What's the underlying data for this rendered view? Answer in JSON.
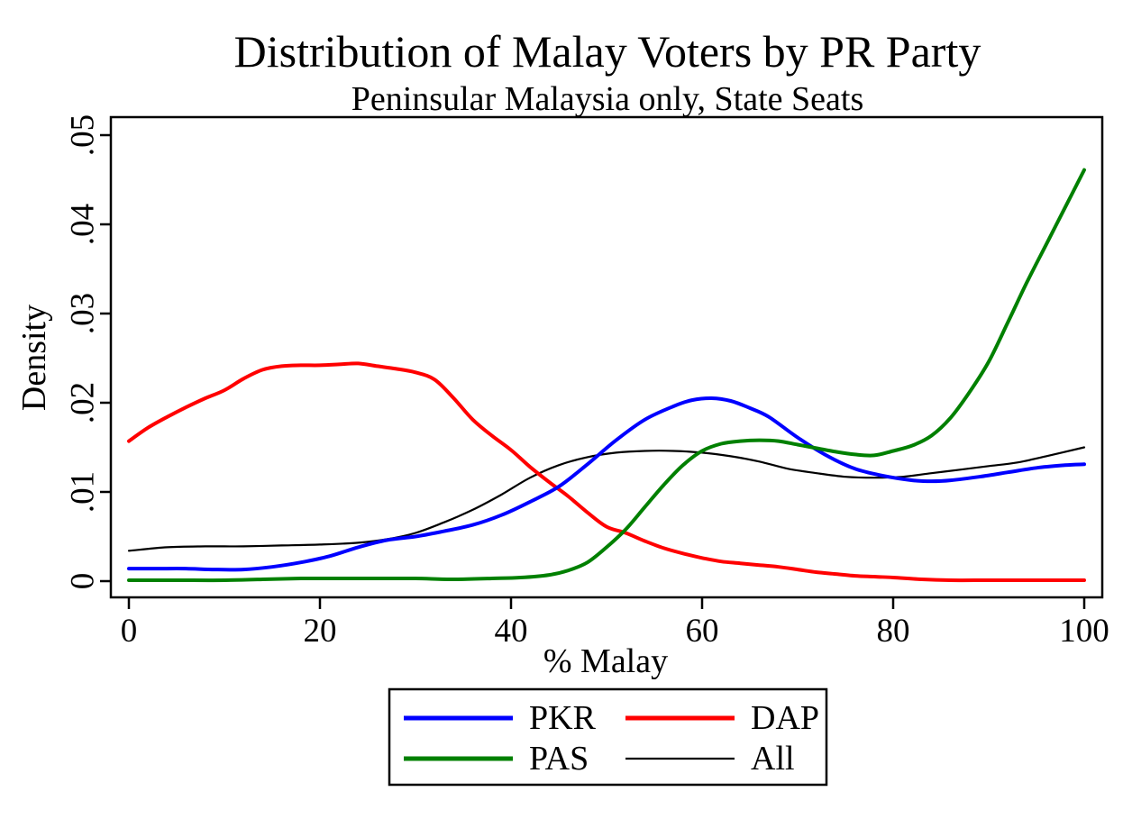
{
  "title": "Distribution of Malay Voters by PR Party",
  "subtitle": "Peninsular Malaysia only, State Seats",
  "chart_data": {
    "type": "line",
    "title": "Distribution of Malay Voters by PR Party",
    "subtitle": "Peninsular Malaysia only, State Seats",
    "xlabel": "% Malay",
    "ylabel": "Density",
    "xlim": [
      0,
      100
    ],
    "ylim": [
      0,
      0.05
    ],
    "grid": false,
    "x_ticks": [
      {
        "value": 0,
        "label": "0"
      },
      {
        "value": 20,
        "label": "20"
      },
      {
        "value": 40,
        "label": "40"
      },
      {
        "value": 60,
        "label": "60"
      },
      {
        "value": 80,
        "label": "80"
      },
      {
        "value": 100,
        "label": "100"
      }
    ],
    "y_ticks": [
      {
        "value": 0.0,
        "label": "0"
      },
      {
        "value": 0.01,
        "label": ".01"
      },
      {
        "value": 0.02,
        "label": ".02"
      },
      {
        "value": 0.03,
        "label": ".03"
      },
      {
        "value": 0.04,
        "label": ".04"
      },
      {
        "value": 0.05,
        "label": ".05"
      }
    ],
    "legend": {
      "position": "below",
      "columns": 2,
      "entries": [
        "PKR",
        "DAP",
        "PAS",
        "All"
      ]
    },
    "series": [
      {
        "name": "All",
        "color": "#000000",
        "line_width": 2.2,
        "points": [
          [
            0,
            0.0034
          ],
          [
            4,
            0.0038
          ],
          [
            8,
            0.0039
          ],
          [
            12,
            0.0039
          ],
          [
            16,
            0.004
          ],
          [
            20,
            0.0041
          ],
          [
            24,
            0.0043
          ],
          [
            27,
            0.0047
          ],
          [
            30,
            0.0054
          ],
          [
            33,
            0.0066
          ],
          [
            36,
            0.008
          ],
          [
            39,
            0.0097
          ],
          [
            42,
            0.0116
          ],
          [
            45,
            0.013
          ],
          [
            48,
            0.0139
          ],
          [
            51,
            0.0144
          ],
          [
            54,
            0.0146
          ],
          [
            57,
            0.0146
          ],
          [
            60,
            0.0144
          ],
          [
            63,
            0.014
          ],
          [
            66,
            0.0134
          ],
          [
            69,
            0.0126
          ],
          [
            72,
            0.0121
          ],
          [
            75,
            0.0117
          ],
          [
            78,
            0.0116
          ],
          [
            81,
            0.0117
          ],
          [
            84,
            0.0121
          ],
          [
            87,
            0.0125
          ],
          [
            90,
            0.0129
          ],
          [
            93,
            0.0133
          ],
          [
            96,
            0.014
          ],
          [
            100,
            0.015
          ]
        ]
      },
      {
        "name": "DAP",
        "color": "#ff0000",
        "line_width": 4,
        "points": [
          [
            0,
            0.0157
          ],
          [
            2,
            0.0172
          ],
          [
            4,
            0.0184
          ],
          [
            6,
            0.0195
          ],
          [
            8,
            0.0205
          ],
          [
            10,
            0.0214
          ],
          [
            12,
            0.0227
          ],
          [
            14,
            0.0237
          ],
          [
            16,
            0.0241
          ],
          [
            18,
            0.0242
          ],
          [
            20,
            0.0242
          ],
          [
            22,
            0.0243
          ],
          [
            24,
            0.0244
          ],
          [
            26,
            0.0241
          ],
          [
            28,
            0.0238
          ],
          [
            30,
            0.0234
          ],
          [
            32,
            0.0226
          ],
          [
            34,
            0.0205
          ],
          [
            36,
            0.0181
          ],
          [
            38,
            0.0163
          ],
          [
            40,
            0.0147
          ],
          [
            42,
            0.0128
          ],
          [
            44,
            0.0111
          ],
          [
            46,
            0.0095
          ],
          [
            48,
            0.0077
          ],
          [
            50,
            0.0061
          ],
          [
            52,
            0.0054
          ],
          [
            54,
            0.0045
          ],
          [
            56,
            0.0037
          ],
          [
            58,
            0.0031
          ],
          [
            60,
            0.0026
          ],
          [
            62,
            0.0022
          ],
          [
            64,
            0.002
          ],
          [
            66,
            0.0018
          ],
          [
            68,
            0.0016
          ],
          [
            70,
            0.0013
          ],
          [
            72,
            0.001
          ],
          [
            74,
            0.0008
          ],
          [
            76,
            0.0006
          ],
          [
            78,
            0.0005
          ],
          [
            80,
            0.0004
          ],
          [
            83,
            0.0002
          ],
          [
            86,
            0.0001
          ],
          [
            90,
            0.0001
          ],
          [
            95,
            0.0001
          ],
          [
            100,
            0.0001
          ]
        ]
      },
      {
        "name": "PKR",
        "color": "#0000ff",
        "line_width": 4,
        "points": [
          [
            0,
            0.0014
          ],
          [
            3,
            0.0014
          ],
          [
            6,
            0.0014
          ],
          [
            9,
            0.0013
          ],
          [
            12,
            0.0013
          ],
          [
            15,
            0.0016
          ],
          [
            18,
            0.0021
          ],
          [
            21,
            0.0028
          ],
          [
            24,
            0.0038
          ],
          [
            27,
            0.0046
          ],
          [
            30,
            0.005
          ],
          [
            33,
            0.0056
          ],
          [
            36,
            0.0063
          ],
          [
            39,
            0.0074
          ],
          [
            42,
            0.0089
          ],
          [
            45,
            0.0106
          ],
          [
            48,
            0.0131
          ],
          [
            51,
            0.0158
          ],
          [
            54,
            0.0181
          ],
          [
            57,
            0.0196
          ],
          [
            59,
            0.0203
          ],
          [
            61,
            0.0205
          ],
          [
            63,
            0.0202
          ],
          [
            65,
            0.0194
          ],
          [
            67,
            0.0184
          ],
          [
            70,
            0.0161
          ],
          [
            73,
            0.0141
          ],
          [
            76,
            0.0126
          ],
          [
            79,
            0.0118
          ],
          [
            82,
            0.0113
          ],
          [
            84,
            0.0112
          ],
          [
            86,
            0.0113
          ],
          [
            89,
            0.0117
          ],
          [
            92,
            0.0122
          ],
          [
            95,
            0.0127
          ],
          [
            98,
            0.013
          ],
          [
            100,
            0.0131
          ]
        ]
      },
      {
        "name": "PAS",
        "color": "#008000",
        "line_width": 4,
        "points": [
          [
            0,
            0.0001
          ],
          [
            5,
            0.0001
          ],
          [
            10,
            0.0001
          ],
          [
            14,
            0.0002
          ],
          [
            18,
            0.0003
          ],
          [
            22,
            0.0003
          ],
          [
            26,
            0.0003
          ],
          [
            30,
            0.0003
          ],
          [
            34,
            0.0002
          ],
          [
            38,
            0.0003
          ],
          [
            41,
            0.0004
          ],
          [
            44,
            0.0007
          ],
          [
            46,
            0.0012
          ],
          [
            48,
            0.0021
          ],
          [
            50,
            0.0038
          ],
          [
            52,
            0.0058
          ],
          [
            54,
            0.0083
          ],
          [
            56,
            0.0108
          ],
          [
            58,
            0.013
          ],
          [
            60,
            0.0146
          ],
          [
            62,
            0.0154
          ],
          [
            64,
            0.0157
          ],
          [
            66,
            0.0158
          ],
          [
            68,
            0.0157
          ],
          [
            70,
            0.0153
          ],
          [
            72,
            0.0149
          ],
          [
            74,
            0.0145
          ],
          [
            76,
            0.0142
          ],
          [
            78,
            0.0141
          ],
          [
            80,
            0.0146
          ],
          [
            82,
            0.0152
          ],
          [
            84,
            0.0163
          ],
          [
            86,
            0.0183
          ],
          [
            88,
            0.0212
          ],
          [
            90,
            0.0246
          ],
          [
            92,
            0.029
          ],
          [
            94,
            0.0335
          ],
          [
            96,
            0.0377
          ],
          [
            98,
            0.0419
          ],
          [
            100,
            0.0461
          ]
        ]
      }
    ]
  }
}
